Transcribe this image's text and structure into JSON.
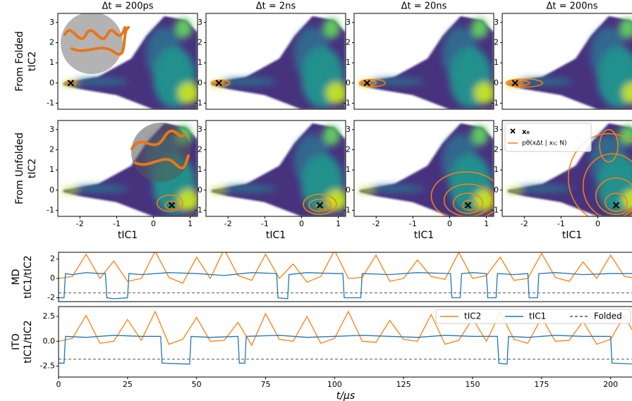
{
  "chart_data": [
    {
      "type": "density",
      "title": "Δt = 200ps",
      "ylabel": [
        "From Folded",
        "tIC2"
      ],
      "xlim": [
        -2.6,
        1.2
      ],
      "ylim": [
        -1.3,
        3.45
      ],
      "yticks": [
        -1,
        0,
        1,
        2,
        3
      ],
      "x0": {
        "x": -2.25,
        "y": 0
      },
      "contour_color": "#ff7f0e",
      "contours": [
        [
          -2.25,
          0,
          0.15,
          0.12
        ]
      ]
    },
    {
      "type": "density",
      "title": "Δt = 2ns",
      "xlim": [
        -2.6,
        1.2
      ],
      "ylim": [
        -1.3,
        3.45
      ],
      "yticks": [
        -1,
        0,
        1,
        2,
        3
      ],
      "x0": {
        "x": -2.25,
        "y": 0
      },
      "contour_color": "#ff7f0e",
      "contours": [
        [
          -2.2,
          0,
          0.25,
          0.15
        ],
        [
          -2.25,
          0,
          0.12,
          0.08
        ]
      ]
    },
    {
      "type": "density",
      "title": "Δt = 20ns",
      "xlim": [
        -2.6,
        1.2
      ],
      "ylim": [
        -1.3,
        3.45
      ],
      "yticks": [
        -1,
        0,
        1,
        2,
        3
      ],
      "x0": {
        "x": -2.25,
        "y": 0
      },
      "contour_color": "#ff7f0e",
      "contours": [
        [
          -2.1,
          0,
          0.35,
          0.18
        ],
        [
          -2.2,
          0,
          0.2,
          0.12
        ]
      ]
    },
    {
      "type": "density",
      "title": "Δt = 200ns",
      "xlim": [
        -2.6,
        1.2
      ],
      "ylim": [
        -1.3,
        3.45
      ],
      "yticks": [
        -1,
        0,
        1,
        2,
        3
      ],
      "x0": {
        "x": -2.25,
        "y": 0
      },
      "contour_color": "#ff7f0e",
      "contours": [
        [
          -2.0,
          0,
          0.5,
          0.2
        ],
        [
          -2.15,
          0,
          0.3,
          0.13
        ],
        [
          -2.2,
          0,
          0.15,
          0.08
        ]
      ]
    },
    {
      "type": "density",
      "ylabel": [
        "From Unfolded",
        "tIC2"
      ],
      "xlabel": "tIC1",
      "xlim": [
        -2.6,
        1.2
      ],
      "ylim": [
        -1.3,
        3.45
      ],
      "xticks": [
        -2,
        -1,
        0,
        1
      ],
      "yticks": [
        -1,
        0,
        1,
        2,
        3
      ],
      "x0": {
        "x": 0.5,
        "y": -0.75
      },
      "contour_color": "#ff7f0e",
      "contours": [
        [
          0.45,
          -0.65,
          0.35,
          0.4
        ],
        [
          0.5,
          -0.75,
          0.18,
          0.2
        ]
      ]
    },
    {
      "type": "density",
      "xlabel": "tIC1",
      "xlim": [
        -2.6,
        1.2
      ],
      "ylim": [
        -1.3,
        3.45
      ],
      "xticks": [
        -2,
        -1,
        0,
        1
      ],
      "yticks": [
        -1,
        0,
        1,
        2,
        3
      ],
      "x0": {
        "x": 0.5,
        "y": -0.75
      },
      "contour_color": "#ff7f0e",
      "contours": [
        [
          0.5,
          -0.7,
          0.45,
          0.5
        ],
        [
          0.5,
          -0.75,
          0.3,
          0.3
        ],
        [
          0.55,
          -0.8,
          0.15,
          0.15
        ]
      ]
    },
    {
      "type": "density",
      "xlabel": "tIC1",
      "xlim": [
        -2.6,
        1.2
      ],
      "ylim": [
        -1.3,
        3.45
      ],
      "xticks": [
        -2,
        -1,
        0,
        1
      ],
      "yticks": [
        -1,
        0,
        1,
        2,
        3
      ],
      "x0": {
        "x": 0.5,
        "y": -0.75
      },
      "contour_color": "#ff7f0e",
      "contours": [
        [
          0.45,
          -0.3,
          0.95,
          1.2
        ],
        [
          0.5,
          -0.5,
          0.65,
          0.8
        ],
        [
          0.5,
          -0.65,
          0.4,
          0.5
        ],
        [
          0.55,
          -0.75,
          0.2,
          0.25
        ]
      ]
    },
    {
      "type": "density",
      "xlabel": "tIC1",
      "xlim": [
        -2.6,
        1.2
      ],
      "ylim": [
        -1.3,
        3.45
      ],
      "xticks": [
        -2,
        -1,
        0,
        1
      ],
      "yticks": [
        -1,
        0,
        1,
        2,
        3
      ],
      "x0": {
        "x": 0.5,
        "y": -0.75
      },
      "contour_color": "#ff7f0e",
      "contours": [
        [
          0.3,
          0.6,
          1.1,
          2.2
        ],
        [
          0.4,
          0.2,
          0.8,
          1.6
        ],
        [
          0.5,
          -0.3,
          0.55,
          0.9
        ],
        [
          0.5,
          -0.6,
          0.3,
          0.45
        ],
        [
          0.3,
          2.2,
          0.25,
          0.8
        ]
      ],
      "legend_labels": [
        "x₀",
        "pθ(xΔt | x₀; N)"
      ]
    },
    {
      "type": "line",
      "ylabel": [
        "MD",
        "tIC1/tIC2"
      ],
      "xlim": [
        0,
        208
      ],
      "ylim": [
        -2.4,
        2.7
      ],
      "yticks": [
        -2,
        0,
        2
      ],
      "reference": {
        "value": -1.5
      },
      "series": [
        {
          "color": "#ff7f0e",
          "x": [
            0,
            5,
            10,
            15,
            20,
            25,
            30,
            35,
            40,
            45,
            50,
            55,
            60,
            65,
            70,
            75,
            80,
            85,
            90,
            95,
            100,
            105,
            110,
            115,
            120,
            125,
            130,
            135,
            140,
            145,
            150,
            155,
            160,
            165,
            170,
            175,
            180,
            185,
            190,
            195,
            200,
            205,
            210
          ],
          "values": [
            0,
            0.2,
            2.5,
            0,
            1.8,
            -0.3,
            0,
            2.8,
            0.1,
            -0.5,
            2.2,
            0,
            3,
            0.3,
            -0.2,
            2.5,
            0,
            1.5,
            -0.4,
            0.2,
            2.9,
            0,
            0.1,
            2.4,
            -0.3,
            0,
            1.9,
            0.2,
            -0.1,
            2.7,
            0,
            0.3,
            2.2,
            -0.2,
            0,
            2.6,
            0.1,
            -0.3,
            1.7,
            0,
            2.4,
            0.2,
            0
          ]
        },
        {
          "color": "#1f77b4",
          "x": [
            0,
            2,
            2.5,
            5,
            10,
            15,
            17,
            17.5,
            20,
            25,
            25.5,
            30,
            40,
            50,
            60,
            70,
            79,
            79.5,
            83,
            83.5,
            90,
            100,
            103,
            103.5,
            109.5,
            110,
            120,
            130,
            142,
            142.5,
            145.5,
            146,
            150,
            155,
            155.5,
            158.5,
            159,
            165,
            170,
            170.5,
            173.5,
            174,
            180,
            190,
            200,
            210
          ],
          "values": [
            -2,
            -2,
            0.5,
            0.4,
            0.6,
            0.5,
            0.5,
            -2,
            -2.1,
            -2,
            0.5,
            0.4,
            0.6,
            0.5,
            0.3,
            0.6,
            0.5,
            -2,
            -2.1,
            0.4,
            0.6,
            0.5,
            0.5,
            -2,
            -2,
            0.5,
            0.4,
            0.6,
            0.5,
            -2,
            -2,
            0.5,
            0.6,
            0.5,
            -2,
            -2,
            0.5,
            0.4,
            0.5,
            -2,
            -2,
            0.5,
            0.6,
            0.4,
            0.5,
            0.5
          ]
        }
      ]
    },
    {
      "type": "line",
      "ylabel": [
        "ITO",
        "tIC1/tIC2"
      ],
      "xlabel": "t/μs",
      "xlim": [
        0,
        208
      ],
      "ylim": [
        -3.6,
        3.5
      ],
      "xticks": [
        0,
        25,
        50,
        75,
        100,
        125,
        150,
        175,
        200
      ],
      "yticks": [
        -2.5,
        {
          "value": 0,
          "label": "0.0"
        },
        2.5
      ],
      "legend": "upper right",
      "reference": {
        "name": "Folded",
        "value": -1.8
      },
      "series": [
        {
          "name": "tIC2",
          "color": "#ff7f0e",
          "x": [
            0,
            5,
            10,
            15,
            20,
            25,
            30,
            35,
            40,
            45,
            50,
            55,
            60,
            65,
            70,
            75,
            80,
            85,
            90,
            95,
            100,
            105,
            110,
            115,
            120,
            125,
            130,
            135,
            140,
            145,
            150,
            155,
            160,
            165,
            170,
            175,
            180,
            185,
            190,
            195,
            200,
            205,
            210
          ],
          "values": [
            0,
            0.3,
            2.6,
            -0.2,
            0,
            2.2,
            0.1,
            3,
            -0.3,
            0.2,
            2.4,
            0,
            0.1,
            1.9,
            -0.4,
            2.8,
            0.2,
            0,
            2.5,
            -0.2,
            0.3,
            3,
            0,
            -0.1,
            2.1,
            0.2,
            0,
            2.7,
            -0.3,
            0.1,
            2.3,
            0,
            2.9,
            0.2,
            -0.2,
            2.4,
            0,
            0.1,
            2,
            -0.3,
            0.2,
            2.6,
            0
          ]
        },
        {
          "name": "tIC1",
          "color": "#1f77b4",
          "x": [
            0,
            2,
            2.5,
            10,
            20,
            30,
            37,
            37.5,
            47.5,
            48,
            55,
            65,
            65.5,
            67.5,
            68,
            80,
            90,
            100,
            110,
            120,
            130,
            140,
            150,
            159,
            159.5,
            162.5,
            163,
            170,
            180,
            190,
            200,
            200.5,
            210
          ],
          "values": [
            -2.2,
            -2.2,
            0.5,
            0.4,
            0.6,
            0.5,
            0.5,
            -2.2,
            -2.3,
            0.5,
            0.4,
            0.5,
            -2.2,
            -2.2,
            0.5,
            0.6,
            0.4,
            0.5,
            0.6,
            0.5,
            0.4,
            0.6,
            0.5,
            0.5,
            -2.2,
            -2.3,
            0.5,
            0.4,
            0.6,
            0.5,
            0.5,
            -2.2,
            -2.3
          ]
        }
      ]
    }
  ]
}
